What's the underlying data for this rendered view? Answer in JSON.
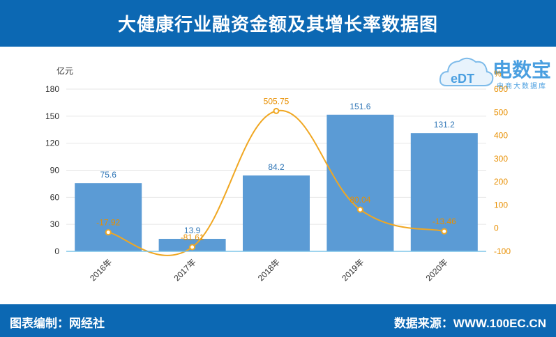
{
  "header": {
    "title": "大健康行业融资金额及其增长率数据图"
  },
  "footer": {
    "left": "图表编制：网经社",
    "right": "数据来源：WWW.100EC.CN"
  },
  "logo": {
    "main": "电数宝",
    "sub": "电商大数据库",
    "badge": "eDT"
  },
  "colors": {
    "bar": "#5b9bd5",
    "line": "#f0a722",
    "brand": "#0c68b3",
    "bar_label": "#2e75b6",
    "line_label": "#e88f00"
  },
  "chart_data": {
    "type": "bar",
    "categories": [
      "2016年",
      "2017年",
      "2018年",
      "2019年",
      "2020年"
    ],
    "series": [
      {
        "name": "",
        "type": "bar",
        "axis": "left",
        "values": [
          75.6,
          13.9,
          84.2,
          151.6,
          131.2
        ]
      },
      {
        "name": "",
        "type": "line",
        "axis": "right",
        "values": [
          -17.92,
          -81.61,
          505.75,
          80.04,
          -13.46
        ]
      }
    ],
    "bar_value_labels": [
      "75.6",
      "13.9",
      "84.2",
      "151.6",
      "131.2"
    ],
    "line_value_labels": [
      "-17.92",
      "-81.61",
      "505.75",
      "80.04",
      "-13.46"
    ],
    "ylabel": "亿元",
    "y2label": "%",
    "ylim": [
      0,
      180
    ],
    "yticks": [
      0,
      30,
      60,
      90,
      120,
      150,
      180
    ],
    "y2lim": [
      -100,
      600
    ],
    "y2ticks": [
      -100,
      0,
      100,
      200,
      300,
      400,
      500,
      600
    ],
    "grid": true
  }
}
